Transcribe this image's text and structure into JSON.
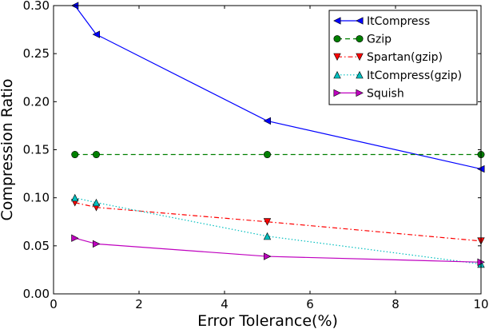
{
  "chart_data": {
    "type": "line",
    "title": "",
    "xlabel": "Error Tolerance(%)",
    "ylabel": "Compression Ratio",
    "xlim": [
      0,
      10
    ],
    "ylim": [
      0,
      0.3
    ],
    "x_ticks": [
      {
        "value": 0,
        "label": "0"
      },
      {
        "value": 2,
        "label": "2"
      },
      {
        "value": 4,
        "label": "4"
      },
      {
        "value": 6,
        "label": "6"
      },
      {
        "value": 8,
        "label": "8"
      },
      {
        "value": 10,
        "label": "10"
      }
    ],
    "y_ticks": [
      {
        "value": 0,
        "label": "0.00"
      },
      {
        "value": 0.05,
        "label": "0.05"
      },
      {
        "value": 0.1,
        "label": "0.10"
      },
      {
        "value": 0.15,
        "label": "0.15"
      },
      {
        "value": 0.2,
        "label": "0.20"
      },
      {
        "value": 0.25,
        "label": "0.25"
      },
      {
        "value": 0.3,
        "label": "0.30"
      }
    ],
    "grid": false,
    "legend_position": "top-right",
    "x": [
      0.5,
      1,
      5,
      10
    ],
    "series": [
      {
        "name": "ItCompress",
        "values": [
          0.3,
          0.27,
          0.18,
          0.13
        ],
        "color": "#0000ff",
        "marker": "triangle-left",
        "linestyle": "solid"
      },
      {
        "name": "Gzip",
        "values": [
          0.145,
          0.145,
          0.145,
          0.145
        ],
        "color": "#007f00",
        "marker": "circle",
        "linestyle": "dashed"
      },
      {
        "name": "Spartan(gzip)",
        "values": [
          0.095,
          0.09,
          0.075,
          0.055
        ],
        "color": "#ff0000",
        "marker": "triangle-down",
        "linestyle": "dashdot"
      },
      {
        "name": "ItCompress(gzip)",
        "values": [
          0.1,
          0.095,
          0.06,
          0.031
        ],
        "color": "#00bfbf",
        "marker": "triangle-up",
        "linestyle": "dotted"
      },
      {
        "name": "Squish",
        "values": [
          0.058,
          0.052,
          0.039,
          0.033
        ],
        "color": "#bf00bf",
        "marker": "triangle-right",
        "linestyle": "solid"
      }
    ]
  }
}
